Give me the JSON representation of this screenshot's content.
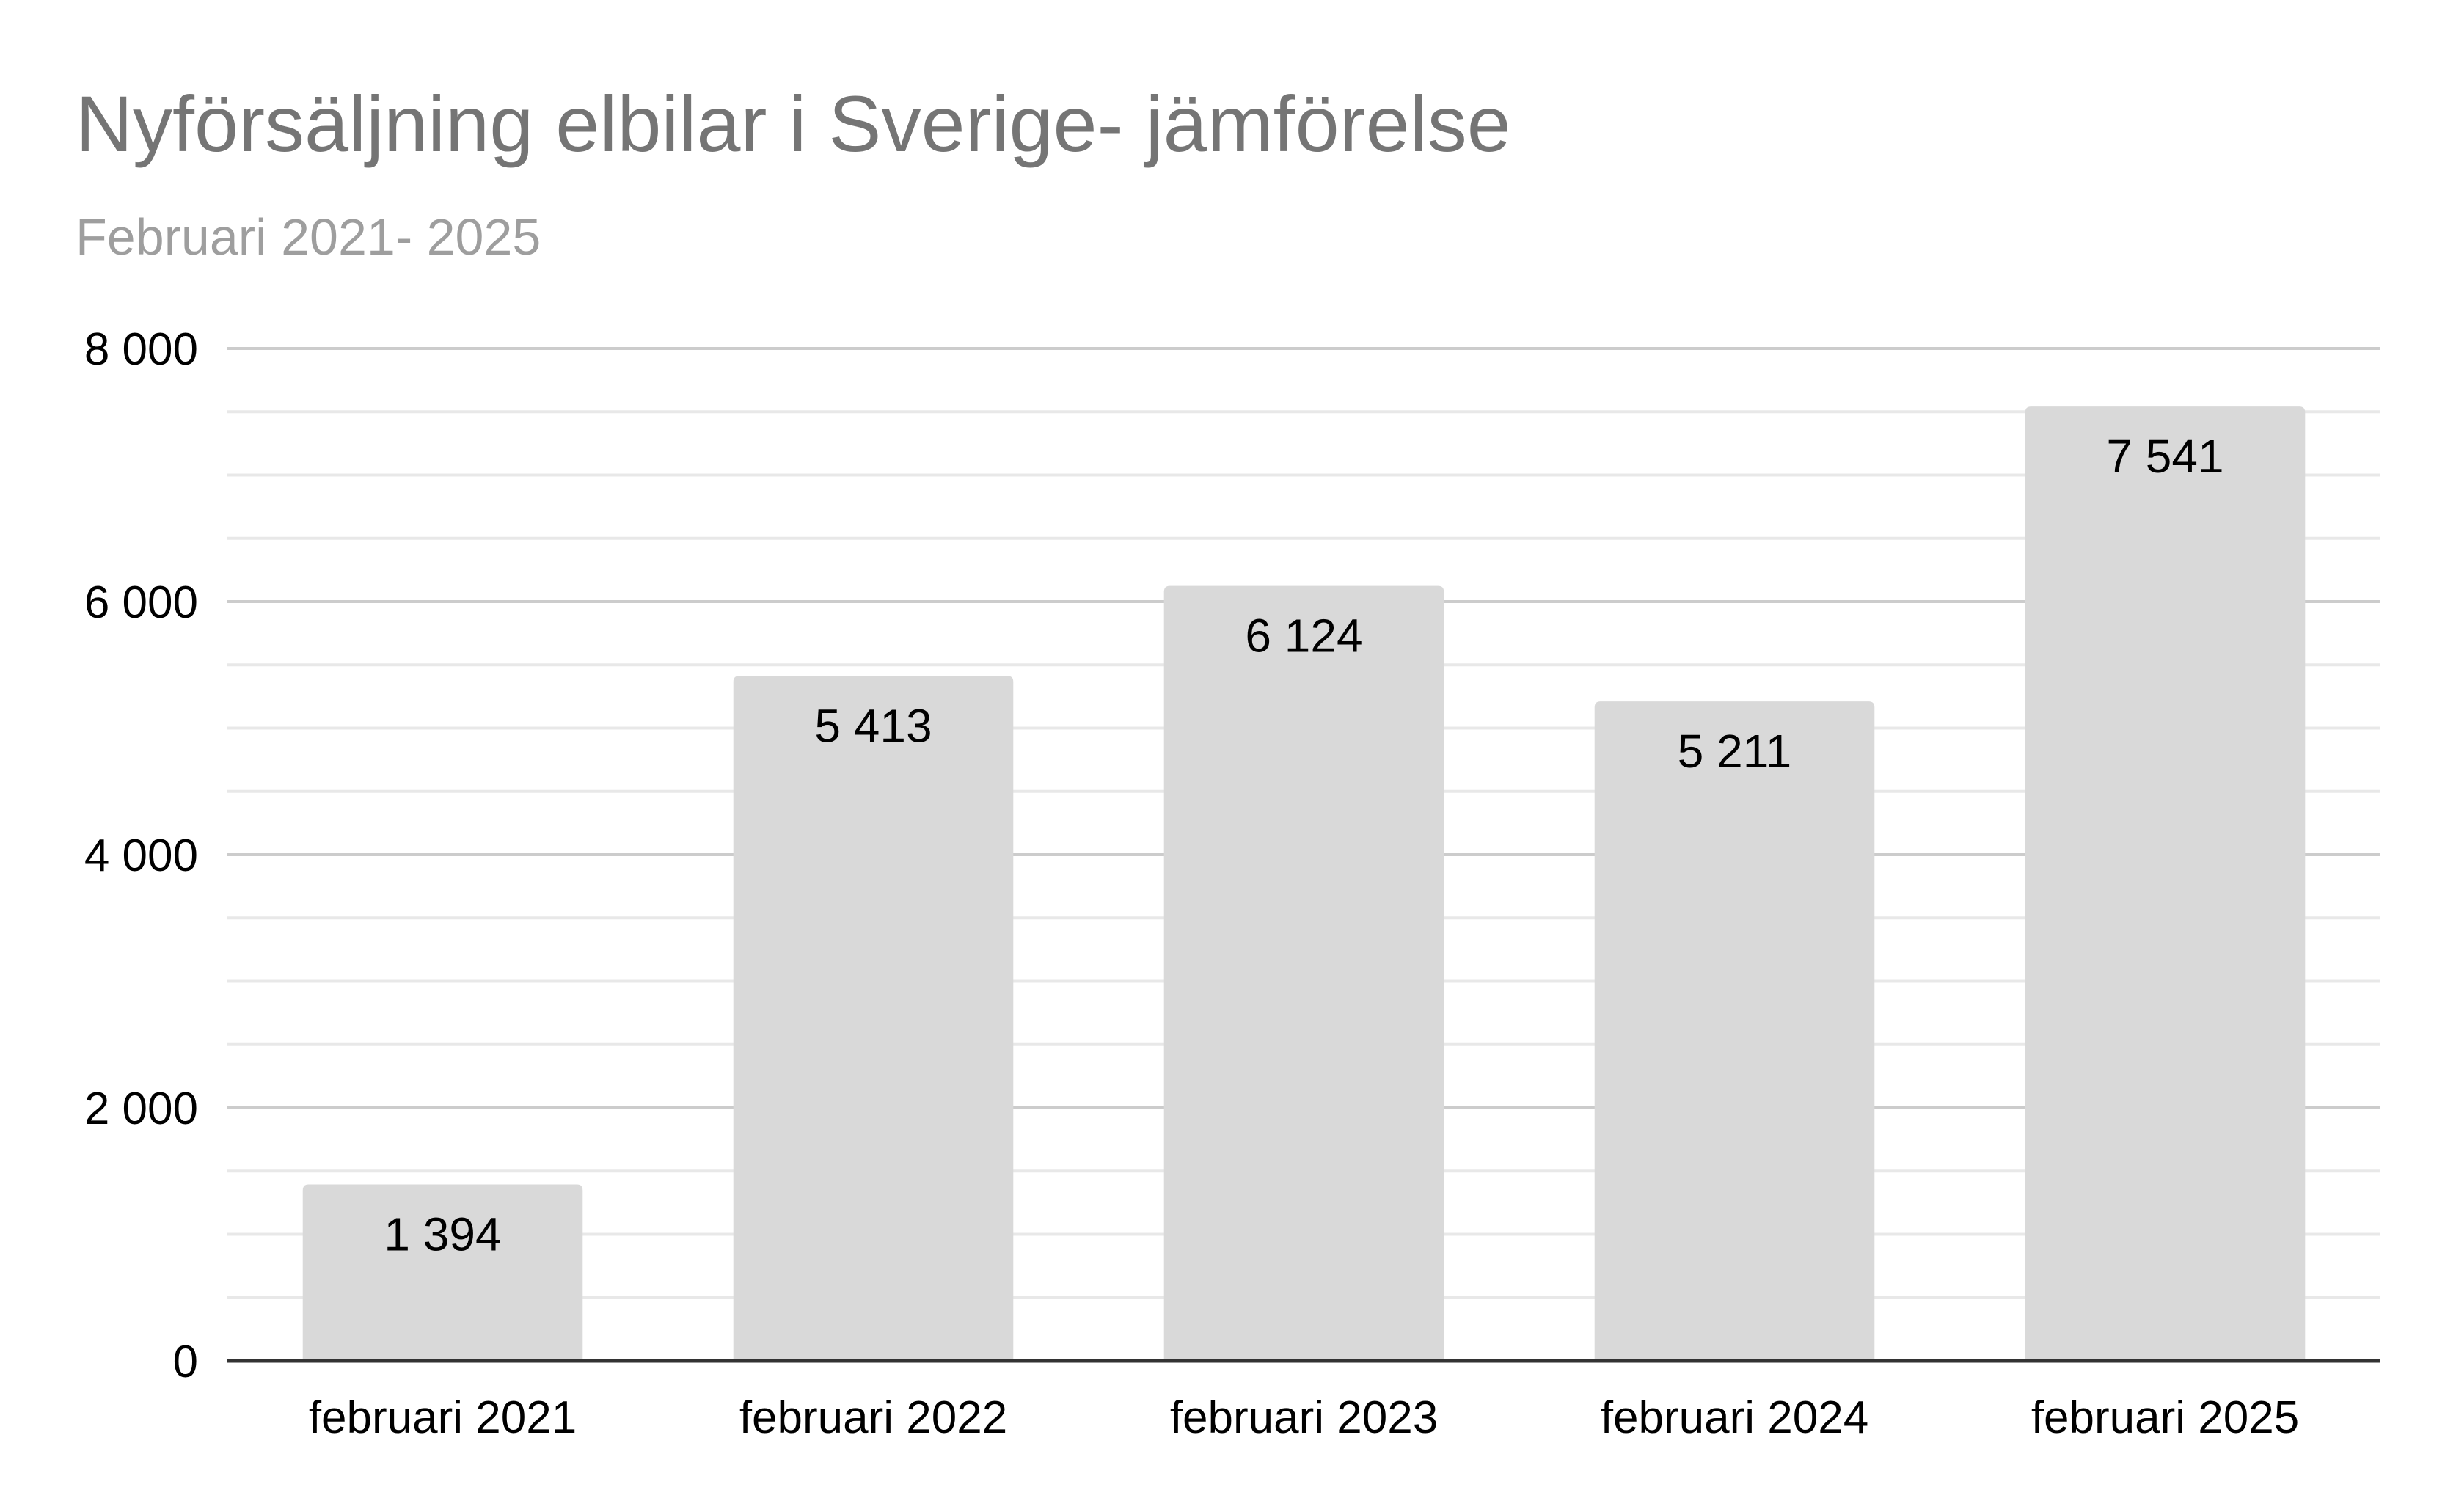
{
  "chart_data": {
    "type": "bar",
    "title": "Nyförsäljning elbilar i Sverige- jämförelse",
    "subtitle": "Februari 2021- 2025",
    "categories": [
      "februari 2021",
      "februari 2022",
      "februari 2023",
      "februari 2024",
      "februari 2025"
    ],
    "values": [
      1394,
      5413,
      6124,
      5211,
      7541
    ],
    "value_labels": [
      "1 394",
      "5 413",
      "6 124",
      "5 211",
      "7 541"
    ],
    "ylim": [
      0,
      8000
    ],
    "yticks": [
      0,
      2000,
      4000,
      6000,
      8000
    ],
    "ytick_labels": [
      "0",
      "2 000",
      "4 000",
      "6 000",
      "8 000"
    ],
    "minor_gridlines": true,
    "legend": "none",
    "colors": {
      "bar": "#d9d9d9",
      "title": "#757575",
      "subtitle": "#9e9e9e",
      "major_grid": "#cccccc",
      "minor_grid": "#e8e8e8",
      "axis": "#333333",
      "text": "#000000"
    }
  }
}
